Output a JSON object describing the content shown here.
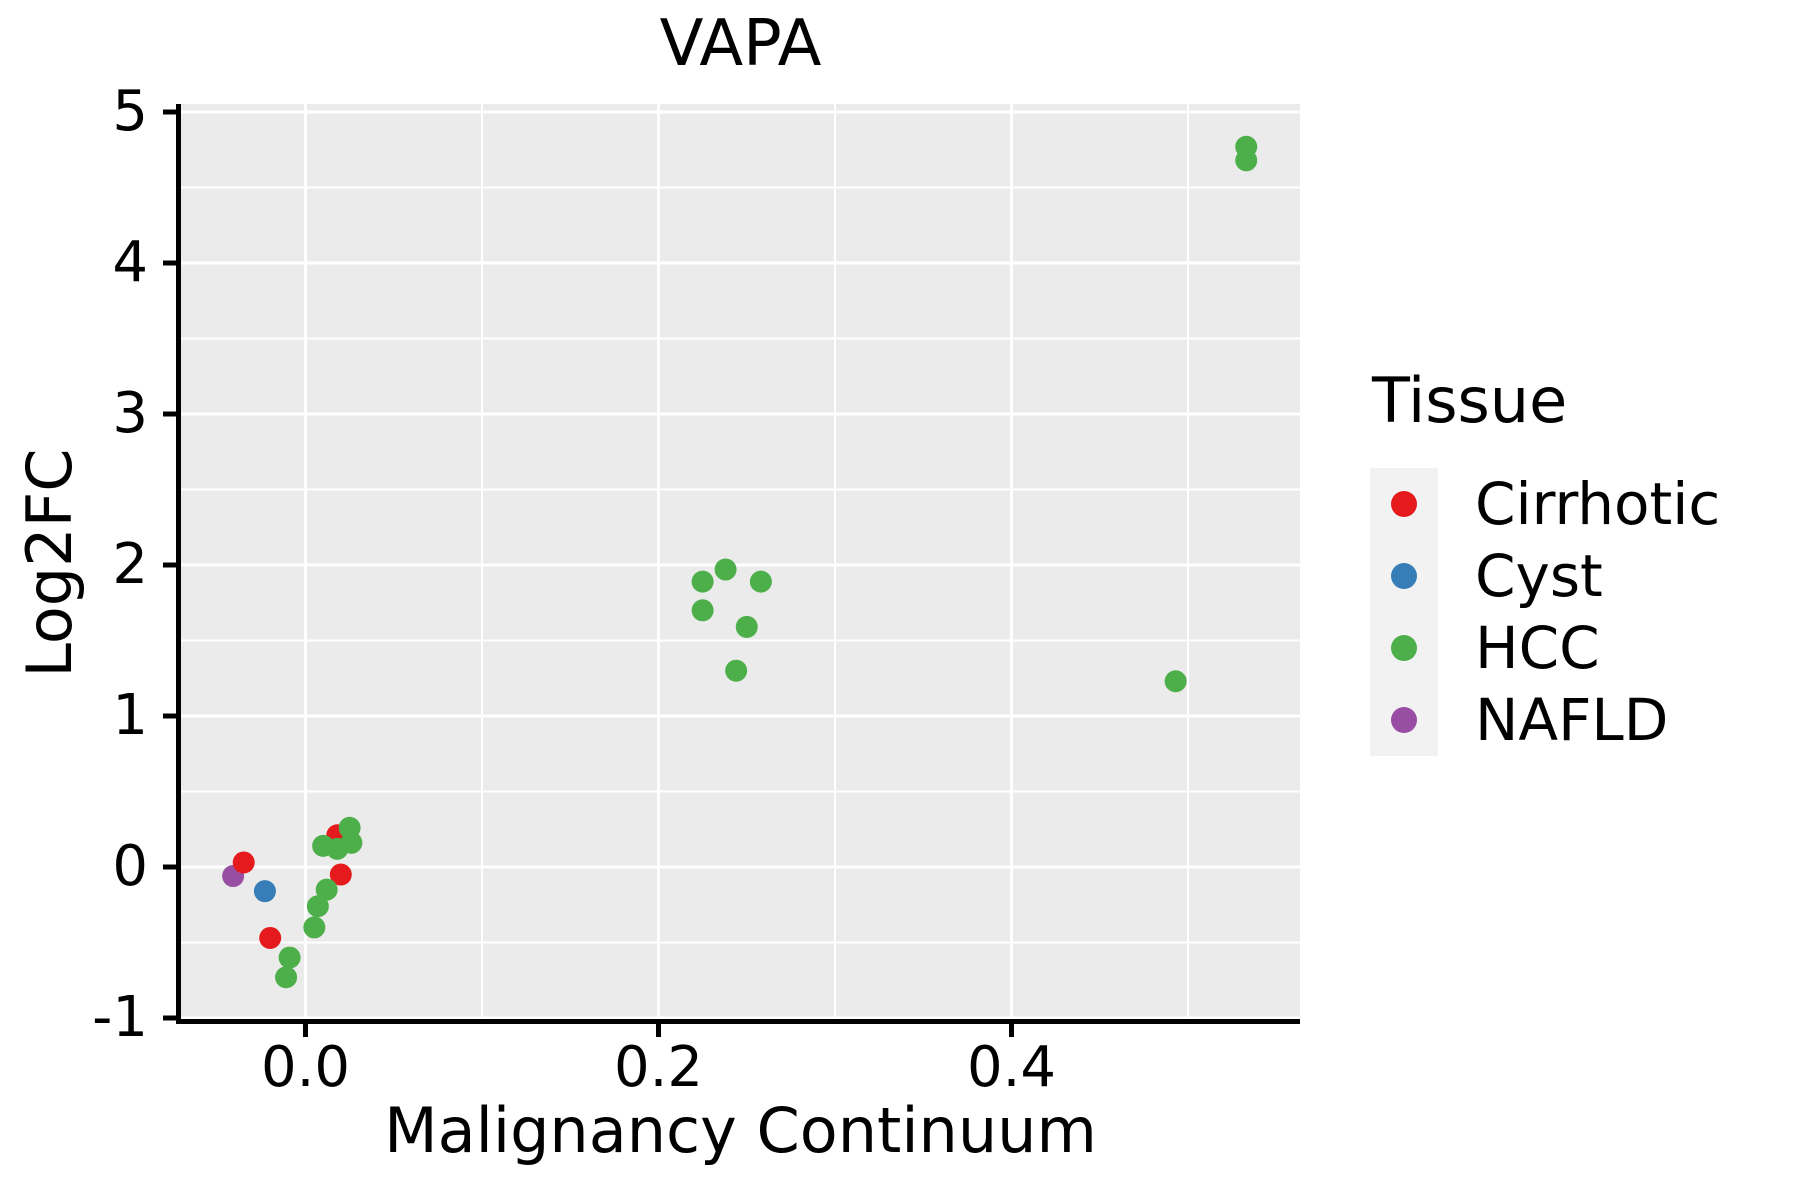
{
  "title": "VAPA",
  "axes": {
    "x_label": "Malignancy Continuum",
    "y_label": "Log2FC"
  },
  "legend": {
    "title": "Tissue",
    "items": [
      {
        "label": "Cirrhotic",
        "color": "#e41a1c"
      },
      {
        "label": "Cyst",
        "color": "#377eb8"
      },
      {
        "label": "HCC",
        "color": "#4daf4a"
      },
      {
        "label": "NAFLD",
        "color": "#984ea3"
      }
    ]
  },
  "style": {
    "panel_bg": "#ebebeb",
    "grid_color": "#ffffff",
    "legend_key_bg": "#f2f2f2",
    "axis_color": "#000000"
  },
  "chart_data": {
    "type": "scatter",
    "title": "VAPA",
    "xlabel": "Malignancy Continuum",
    "ylabel": "Log2FC",
    "xlim": [
      -0.071,
      0.563
    ],
    "ylim": [
      -1.02,
      5.05
    ],
    "x_tick_values": [
      0.0,
      0.2,
      0.4
    ],
    "x_tick_labels": [
      "0.0",
      "0.2",
      "0.4"
    ],
    "y_tick_values": [
      -1,
      0,
      1,
      2,
      3,
      4,
      5
    ],
    "y_tick_labels": [
      "-1",
      "0",
      "1",
      "2",
      "3",
      "4",
      "5"
    ],
    "x_minor_ticks": [
      0.1,
      0.3,
      0.5
    ],
    "y_minor_ticks": [
      -0.5,
      0.5,
      1.5,
      2.5,
      3.5,
      4.5
    ],
    "grid": true,
    "legend_position": "right",
    "legend_title": "Tissue",
    "series": [
      {
        "name": "NAFLD",
        "color": "#984ea3",
        "points": [
          [
            -0.041,
            -0.06
          ]
        ]
      },
      {
        "name": "Cirrhotic",
        "color": "#e41a1c",
        "points": [
          [
            -0.035,
            0.03
          ],
          [
            0.018,
            0.21
          ],
          [
            -0.02,
            -0.47
          ],
          [
            0.02,
            -0.05
          ]
        ]
      },
      {
        "name": "Cyst",
        "color": "#377eb8",
        "points": [
          [
            -0.023,
            -0.16
          ]
        ]
      },
      {
        "name": "HCC",
        "color": "#4daf4a",
        "points": [
          [
            0.018,
            0.12
          ],
          [
            0.01,
            0.14
          ],
          [
            0.026,
            0.16
          ],
          [
            0.025,
            0.26
          ],
          [
            0.012,
            -0.15
          ],
          [
            0.007,
            -0.26
          ],
          [
            0.005,
            -0.4
          ],
          [
            -0.009,
            -0.6
          ],
          [
            -0.011,
            -0.73
          ],
          [
            0.225,
            1.89
          ],
          [
            0.238,
            1.97
          ],
          [
            0.258,
            1.89
          ],
          [
            0.225,
            1.7
          ],
          [
            0.25,
            1.59
          ],
          [
            0.244,
            1.3
          ],
          [
            0.493,
            1.23
          ],
          [
            0.533,
            4.77
          ],
          [
            0.533,
            4.68
          ]
        ]
      }
    ]
  }
}
